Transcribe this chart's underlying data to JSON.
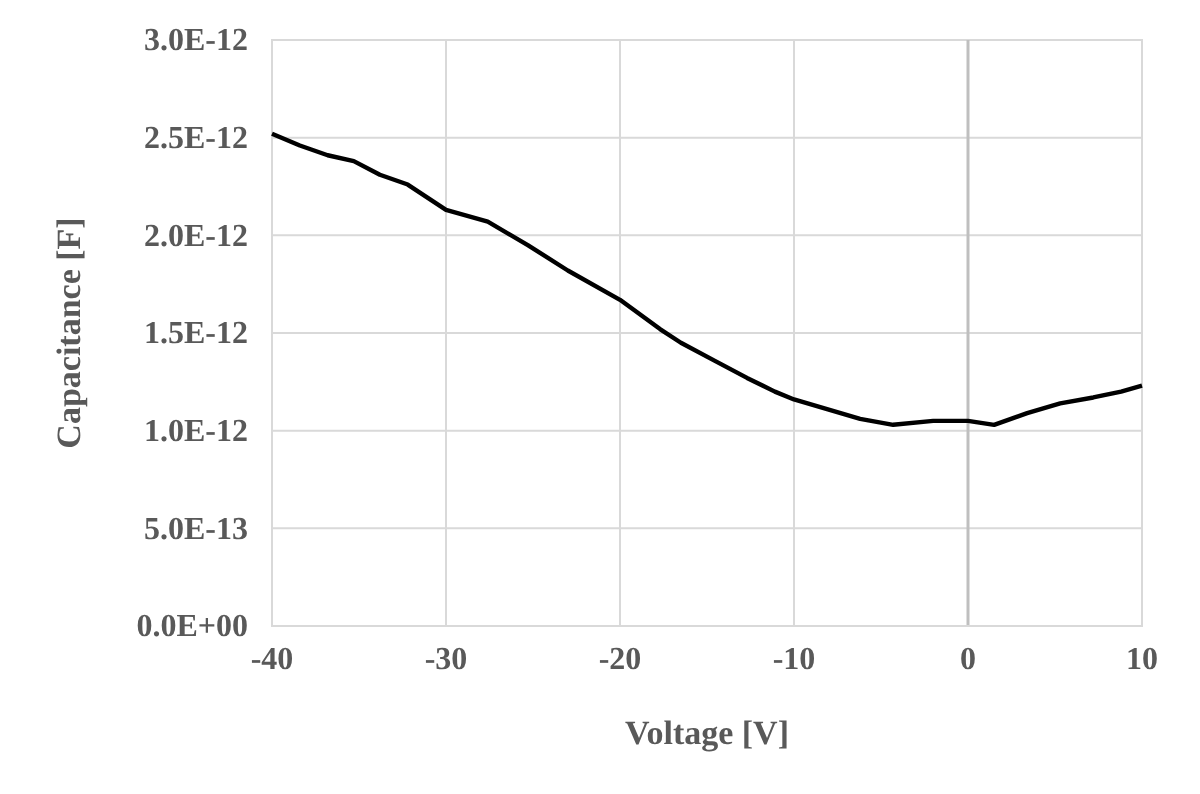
{
  "chart_data": {
    "type": "line",
    "xlabel": "Voltage [V]",
    "ylabel": "Capacitance [F]",
    "xlim": [
      -40,
      10
    ],
    "xticks": [
      -40,
      -30,
      -20,
      -10,
      0,
      10
    ],
    "ylim": [
      0,
      3e-12
    ],
    "yticks": [
      {
        "value": 0,
        "label": "0.0E+00"
      },
      {
        "value": 5e-13,
        "label": "5.0E-13"
      },
      {
        "value": 1e-12,
        "label": "1.0E-12"
      },
      {
        "value": 1.5e-12,
        "label": "1.5E-12"
      },
      {
        "value": 2e-12,
        "label": "2.0E-12"
      },
      {
        "value": 2.5e-12,
        "label": "2.5E-12"
      },
      {
        "value": 3e-12,
        "label": "3.0E-12"
      }
    ],
    "grid": true,
    "series": [
      {
        "color": "#000000",
        "x": [
          -40,
          -38.4,
          -36.8,
          -35.3,
          -33.8,
          -32.2,
          -30,
          -27.6,
          -25.3,
          -23,
          -20,
          -17.7,
          -16.5,
          -14.6,
          -12.7,
          -11.1,
          -10,
          -8.1,
          -6.2,
          -4.3,
          -2,
          0,
          1.5,
          3.4,
          5.3,
          7.2,
          8.8,
          10
        ],
        "values": [
          2.52e-12,
          2.46e-12,
          2.41e-12,
          2.38e-12,
          2.31e-12,
          2.26e-12,
          2.13e-12,
          2.07e-12,
          1.95e-12,
          1.82e-12,
          1.67e-12,
          1.52e-12,
          1.45e-12,
          1.36e-12,
          1.27e-12,
          1.2e-12,
          1.16e-12,
          1.11e-12,
          1.06e-12,
          1.03e-12,
          1.05e-12,
          1.05e-12,
          1.03e-12,
          1.09e-12,
          1.14e-12,
          1.17e-12,
          1.2e-12,
          1.23e-12
        ]
      }
    ]
  }
}
